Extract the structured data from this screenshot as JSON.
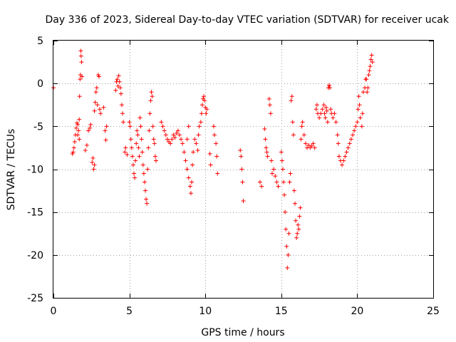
{
  "chart_data": {
    "type": "scatter",
    "title": "Day 336 of 2023, Sidereal Day-to-day VTEC variation (SDTVAR) for receiver ucak",
    "xlabel": "GPS time / hours",
    "ylabel": "SDTVAR / TECUs",
    "xlim": [
      0,
      25
    ],
    "ylim": [
      -25,
      5
    ],
    "xticks": [
      0,
      5,
      10,
      15,
      20,
      25
    ],
    "yticks": [
      -25,
      -20,
      -15,
      -10,
      -5,
      0,
      5
    ],
    "grid": true,
    "marker": "+",
    "color": "#ff0000",
    "series": [
      {
        "name": "SDTVAR",
        "points": [
          [
            0.0,
            -0.5
          ],
          [
            1.25,
            -8.2
          ],
          [
            1.3,
            -8.0
          ],
          [
            1.35,
            -7.5
          ],
          [
            1.4,
            -6.8
          ],
          [
            1.45,
            -6.0
          ],
          [
            1.5,
            -5.2
          ],
          [
            1.55,
            -4.6
          ],
          [
            1.6,
            -4.8
          ],
          [
            1.65,
            -5.5
          ],
          [
            1.7,
            -4.2
          ],
          [
            1.72,
            -1.5
          ],
          [
            1.75,
            0.5
          ],
          [
            1.78,
            1.0
          ],
          [
            1.8,
            3.8
          ],
          [
            1.82,
            3.2
          ],
          [
            1.85,
            2.5
          ],
          [
            1.88,
            0.8
          ],
          [
            1.7,
            -6.5
          ],
          [
            1.6,
            -6.0
          ],
          [
            2.1,
            -7.8
          ],
          [
            2.2,
            -7.2
          ],
          [
            2.3,
            -5.5
          ],
          [
            2.4,
            -5.2
          ],
          [
            2.45,
            -4.8
          ],
          [
            2.55,
            -9.2
          ],
          [
            2.6,
            -8.7
          ],
          [
            2.65,
            -10.0
          ],
          [
            2.7,
            -9.5
          ],
          [
            2.7,
            -3.2
          ],
          [
            2.75,
            -2.2
          ],
          [
            2.8,
            -1.0
          ],
          [
            2.85,
            -0.5
          ],
          [
            2.9,
            -2.5
          ],
          [
            2.95,
            1.0
          ],
          [
            3.0,
            0.8
          ],
          [
            3.05,
            -3.0
          ],
          [
            3.1,
            -3.5
          ],
          [
            3.3,
            -2.8
          ],
          [
            3.4,
            -5.5
          ],
          [
            3.45,
            -6.6
          ],
          [
            3.5,
            -5.0
          ],
          [
            4.1,
            -0.8
          ],
          [
            4.15,
            0.2
          ],
          [
            4.2,
            0.5
          ],
          [
            4.25,
            -0.3
          ],
          [
            4.3,
            0.9
          ],
          [
            4.35,
            0.2
          ],
          [
            4.4,
            -0.5
          ],
          [
            4.45,
            -1.2
          ],
          [
            4.5,
            -2.5
          ],
          [
            4.55,
            -3.5
          ],
          [
            4.6,
            -4.5
          ],
          [
            4.7,
            -8.0
          ],
          [
            4.75,
            -7.5
          ],
          [
            4.85,
            -8.3
          ],
          [
            5.0,
            -4.5
          ],
          [
            5.05,
            -5.0
          ],
          [
            5.1,
            -6.5
          ],
          [
            5.15,
            -7.5
          ],
          [
            5.2,
            -8.5
          ],
          [
            5.25,
            -9.5
          ],
          [
            5.3,
            -10.5
          ],
          [
            5.35,
            -11.0
          ],
          [
            5.4,
            -9.0
          ],
          [
            5.45,
            -7.0
          ],
          [
            5.5,
            -5.5
          ],
          [
            5.55,
            -6.0
          ],
          [
            5.6,
            -7.5
          ],
          [
            5.65,
            -8.5
          ],
          [
            5.7,
            -4.0
          ],
          [
            5.75,
            -5.0
          ],
          [
            5.8,
            -6.5
          ],
          [
            5.85,
            -8.0
          ],
          [
            5.9,
            -9.5
          ],
          [
            5.95,
            -10.5
          ],
          [
            6.0,
            -11.5
          ],
          [
            6.05,
            -12.5
          ],
          [
            6.1,
            -13.5
          ],
          [
            6.15,
            -14.0
          ],
          [
            6.2,
            -10.0
          ],
          [
            6.25,
            -7.5
          ],
          [
            6.3,
            -5.5
          ],
          [
            6.35,
            -3.5
          ],
          [
            6.4,
            -2.0
          ],
          [
            6.45,
            -1.0
          ],
          [
            6.5,
            -1.5
          ],
          [
            6.55,
            -5.0
          ],
          [
            6.6,
            -6.5
          ],
          [
            6.65,
            -7.0
          ],
          [
            6.7,
            -8.5
          ],
          [
            6.75,
            -9.0
          ],
          [
            7.1,
            -4.5
          ],
          [
            7.2,
            -5.0
          ],
          [
            7.3,
            -5.5
          ],
          [
            7.4,
            -6.0
          ],
          [
            7.5,
            -6.5
          ],
          [
            7.6,
            -6.8
          ],
          [
            7.7,
            -7.0
          ],
          [
            7.8,
            -6.5
          ],
          [
            7.9,
            -6.0
          ],
          [
            8.0,
            -6.3
          ],
          [
            8.1,
            -5.8
          ],
          [
            8.2,
            -5.5
          ],
          [
            8.3,
            -6.0
          ],
          [
            8.4,
            -6.5
          ],
          [
            8.5,
            -7.0
          ],
          [
            8.6,
            -8.0
          ],
          [
            8.7,
            -9.0
          ],
          [
            8.8,
            -10.0
          ],
          [
            8.9,
            -11.0
          ],
          [
            9.0,
            -12.0
          ],
          [
            9.05,
            -12.8
          ],
          [
            9.1,
            -11.5
          ],
          [
            9.15,
            -9.5
          ],
          [
            9.2,
            -8.0
          ],
          [
            8.9,
            -5.0
          ],
          [
            8.8,
            -6.5
          ],
          [
            9.3,
            -6.5
          ],
          [
            9.4,
            -7.0
          ],
          [
            9.5,
            -7.8
          ],
          [
            9.55,
            -6.0
          ],
          [
            9.6,
            -5.0
          ],
          [
            9.7,
            -4.5
          ],
          [
            9.75,
            -3.5
          ],
          [
            9.8,
            -2.5
          ],
          [
            9.85,
            -1.8
          ],
          [
            9.9,
            -1.5
          ],
          [
            9.95,
            -2.0
          ],
          [
            10.0,
            -2.8
          ],
          [
            10.05,
            -3.5
          ],
          [
            10.1,
            -3.0
          ],
          [
            10.3,
            -8.2
          ],
          [
            10.35,
            -9.5
          ],
          [
            10.55,
            -5.0
          ],
          [
            10.6,
            -6.0
          ],
          [
            10.7,
            -7.0
          ],
          [
            10.75,
            -8.5
          ],
          [
            10.8,
            -10.5
          ],
          [
            12.3,
            -7.8
          ],
          [
            12.35,
            -8.5
          ],
          [
            12.4,
            -10.0
          ],
          [
            12.45,
            -11.5
          ],
          [
            12.5,
            -13.7
          ],
          [
            13.6,
            -11.5
          ],
          [
            13.7,
            -12.0
          ],
          [
            13.9,
            -5.3
          ],
          [
            13.95,
            -6.5
          ],
          [
            14.0,
            -7.5
          ],
          [
            14.05,
            -8.0
          ],
          [
            14.1,
            -8.5
          ],
          [
            14.2,
            -1.8
          ],
          [
            14.25,
            -2.5
          ],
          [
            14.3,
            -3.5
          ],
          [
            14.35,
            -9.0
          ],
          [
            14.4,
            -10.5
          ],
          [
            14.5,
            -10.0
          ],
          [
            14.6,
            -10.8
          ],
          [
            14.7,
            -11.5
          ],
          [
            14.8,
            -12.0
          ],
          [
            15.0,
            -8.0
          ],
          [
            15.05,
            -9.0
          ],
          [
            15.1,
            -10.0
          ],
          [
            15.15,
            -11.5
          ],
          [
            15.2,
            -13.0
          ],
          [
            15.25,
            -15.0
          ],
          [
            15.3,
            -17.0
          ],
          [
            15.35,
            -19.0
          ],
          [
            15.4,
            -21.5
          ],
          [
            15.45,
            -20.0
          ],
          [
            15.5,
            -17.5
          ],
          [
            15.55,
            -11.5
          ],
          [
            15.6,
            -10.5
          ],
          [
            15.65,
            -2.0
          ],
          [
            15.7,
            -1.5
          ],
          [
            15.75,
            -4.5
          ],
          [
            15.8,
            -6.0
          ],
          [
            15.85,
            -12.5
          ],
          [
            15.9,
            -14.0
          ],
          [
            15.95,
            -16.0
          ],
          [
            16.0,
            -18.0
          ],
          [
            16.05,
            -17.5
          ],
          [
            16.1,
            -16.5
          ],
          [
            16.15,
            -17.0
          ],
          [
            16.2,
            -15.5
          ],
          [
            16.25,
            -14.5
          ],
          [
            16.3,
            -6.5
          ],
          [
            16.35,
            -5.0
          ],
          [
            16.4,
            -4.5
          ],
          [
            16.5,
            -6.0
          ],
          [
            16.6,
            -7.0
          ],
          [
            16.7,
            -7.5
          ],
          [
            16.8,
            -7.2
          ],
          [
            16.9,
            -7.5
          ],
          [
            17.0,
            -7.3
          ],
          [
            17.1,
            -7.0
          ],
          [
            17.2,
            -7.5
          ],
          [
            17.3,
            -3.0
          ],
          [
            17.35,
            -2.5
          ],
          [
            17.4,
            -3.5
          ],
          [
            17.5,
            -4.0
          ],
          [
            17.6,
            -3.5
          ],
          [
            17.7,
            -3.0
          ],
          [
            17.8,
            -2.5
          ],
          [
            17.85,
            -3.5
          ],
          [
            17.9,
            -4.0
          ],
          [
            17.95,
            -2.8
          ],
          [
            18.0,
            -3.2
          ],
          [
            18.05,
            -4.5
          ],
          [
            18.1,
            -0.5
          ],
          [
            18.15,
            -0.2
          ],
          [
            18.2,
            -0.5
          ],
          [
            18.25,
            -3.0
          ],
          [
            18.3,
            -3.5
          ],
          [
            18.4,
            -4.0
          ],
          [
            18.5,
            -3.5
          ],
          [
            18.6,
            -4.5
          ],
          [
            18.7,
            -6.0
          ],
          [
            18.75,
            -7.0
          ],
          [
            18.8,
            -8.5
          ],
          [
            18.9,
            -9.0
          ],
          [
            19.0,
            -9.5
          ],
          [
            19.1,
            -9.0
          ],
          [
            19.2,
            -8.5
          ],
          [
            19.3,
            -8.0
          ],
          [
            19.4,
            -7.5
          ],
          [
            19.5,
            -7.0
          ],
          [
            19.6,
            -6.5
          ],
          [
            19.7,
            -6.0
          ],
          [
            19.8,
            -5.5
          ],
          [
            19.9,
            -5.0
          ],
          [
            20.0,
            -4.5
          ],
          [
            20.05,
            -3.0
          ],
          [
            20.1,
            -1.5
          ],
          [
            20.15,
            -2.5
          ],
          [
            20.2,
            -4.0
          ],
          [
            20.3,
            -5.0
          ],
          [
            20.35,
            -3.5
          ],
          [
            20.4,
            -1.0
          ],
          [
            20.5,
            -0.5
          ],
          [
            20.55,
            0.5
          ],
          [
            20.6,
            0.5
          ],
          [
            20.65,
            -1.0
          ],
          [
            20.7,
            -0.5
          ],
          [
            20.75,
            1.0
          ],
          [
            20.8,
            1.5
          ],
          [
            20.85,
            2.0
          ],
          [
            20.9,
            2.8
          ],
          [
            20.95,
            3.3
          ],
          [
            21.0,
            2.5
          ]
        ]
      }
    ]
  }
}
